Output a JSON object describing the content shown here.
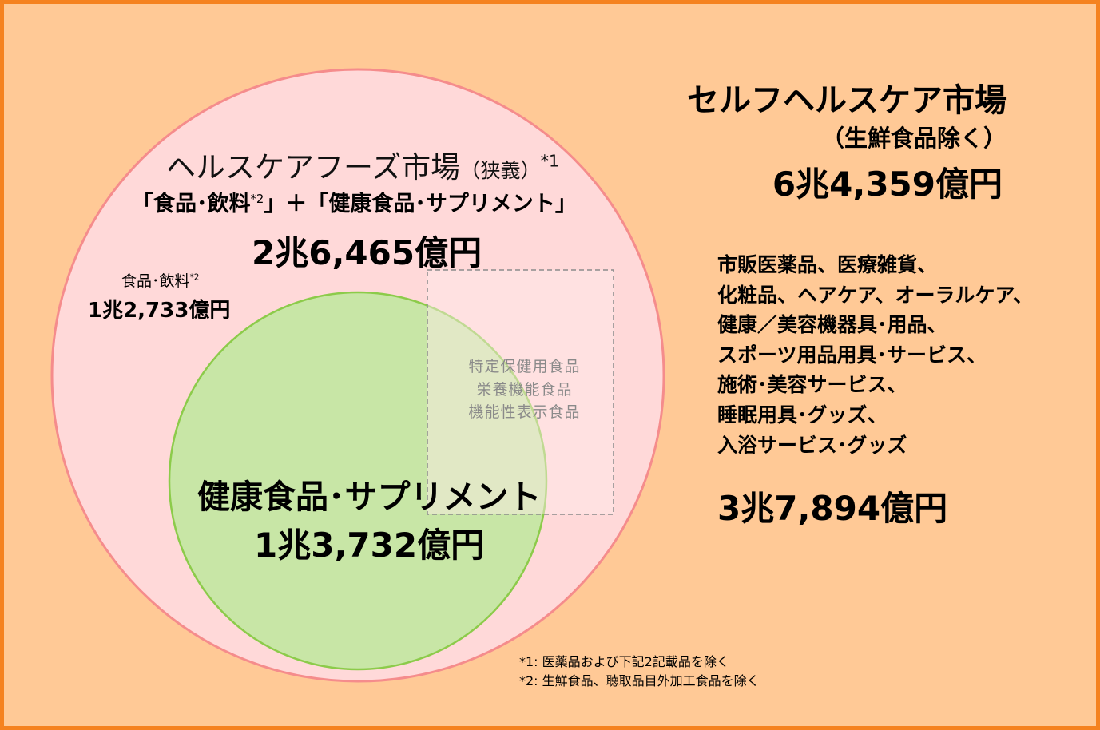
{
  "outer_market": {
    "title": "セルフヘルスケア市場",
    "subtitle": "（生鮮食品除く）",
    "value": "6兆4,359億円",
    "items": [
      "市販医薬品、医療雑貨、",
      "化粧品、ヘアケア、オーラルケア、",
      "健康／美容機器具･用品、",
      "スポーツ用品用具･サービス、",
      "施術･美容サービス、",
      "睡眠用具･グッズ、",
      "入浴サービス･グッズ"
    ],
    "items_value": "3兆7,894億円"
  },
  "healthcare_foods": {
    "title": "ヘルスケアフーズ市場",
    "title_paren": "（狭義）",
    "title_sup": "*1",
    "formula_part1": "「食品･飲料",
    "formula_sup": "*2",
    "formula_part2": "」＋「健康食品･サプリメント」",
    "value": "2兆6,465億円"
  },
  "food_beverage": {
    "label": "食品･飲料",
    "label_sup": "*2",
    "value": "1兆2,733億円"
  },
  "health_supplements": {
    "title": "健康食品･サプリメント",
    "value": "1兆3,732億円"
  },
  "fosh_box": {
    "lines": [
      "特定保健用食品",
      "栄養機能食品",
      "機能性表示食品"
    ]
  },
  "notes": [
    "*1: 医薬品および下記2記載品を除く",
    "*2: 生鮮食品、聴取品目外加工食品を除く"
  ],
  "colors": {
    "background": "#FFC996",
    "border": "#F58220",
    "outer_circle_fill": "#FFD9D9",
    "outer_circle_stroke": "#F58C8C",
    "inner_circle_fill": "#C8E6A6",
    "inner_circle_stroke": "#8CCB4A",
    "dashed_box_stroke": "#8C8C8C"
  }
}
